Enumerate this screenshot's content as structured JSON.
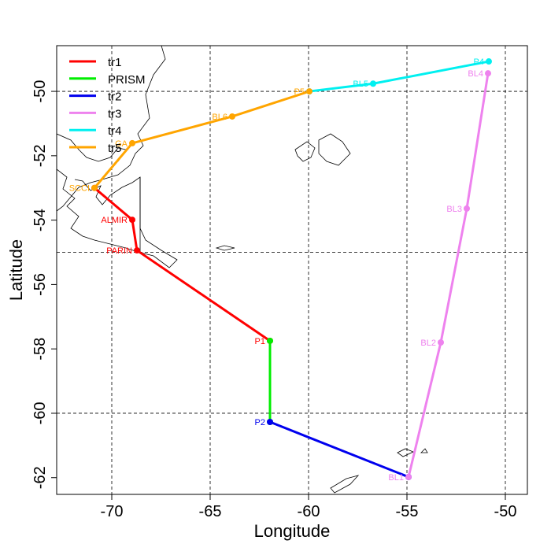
{
  "chart_data": {
    "type": "track-map",
    "xlabel": "Longitude",
    "ylabel": "Latitude",
    "xlim": [
      -72.8,
      -48.88
    ],
    "ylim": [
      -62.52,
      -48.58
    ],
    "xticks": [
      -70,
      -65,
      -60,
      -55,
      -50
    ],
    "yticks": [
      -50,
      -52,
      -54,
      -56,
      -58,
      -60,
      -62
    ],
    "grid": {
      "x": [
        -70,
        -65,
        -60,
        -55,
        -50
      ],
      "y": [
        -50,
        -55,
        -60
      ]
    },
    "legend": "top-left",
    "series": [
      {
        "name": "tr1",
        "color": "#ff0000",
        "x": [
          -70.88,
          -68.96,
          -68.72,
          -61.96
        ],
        "y": [
          -53.0,
          -53.99,
          -54.94,
          -57.75
        ],
        "labels": [
          null,
          "ALMIR",
          "PARIN",
          "P1"
        ]
      },
      {
        "name": "PRISM",
        "color": "#00ee00",
        "x": [
          -61.96,
          -61.96
        ],
        "y": [
          -57.75,
          -60.27
        ],
        "labels": [
          null,
          null
        ]
      },
      {
        "name": "tr2",
        "color": "#0000ee",
        "x": [
          -61.96,
          -54.92
        ],
        "y": [
          -60.27,
          -61.98
        ],
        "labels": [
          "P2",
          null
        ]
      },
      {
        "name": "tr3",
        "color": "#ee82ee",
        "x": [
          -54.92,
          -53.28,
          -51.96,
          -50.88
        ],
        "y": [
          -61.98,
          -57.8,
          -53.64,
          -49.44
        ],
        "labels": [
          "BL1",
          "BL2",
          "BL3",
          "BL4"
        ]
      },
      {
        "name": "tr4",
        "color": "#00f0f0",
        "x": [
          -59.96,
          -56.72,
          -50.84
        ],
        "y": [
          -50.0,
          -49.76,
          -49.07
        ],
        "labels": [
          null,
          "BL5",
          "P4"
        ]
      },
      {
        "name": "tr5",
        "color": "#ffa500",
        "x": [
          -59.96,
          -63.88,
          -68.96,
          -70.88
        ],
        "y": [
          -50.0,
          -50.78,
          -51.61,
          -53.0
        ],
        "labels": [
          "P5",
          "BL6",
          "GA",
          "SCCI"
        ]
      }
    ]
  }
}
